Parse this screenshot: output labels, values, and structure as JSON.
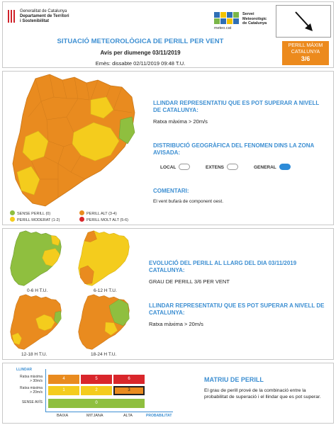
{
  "header": {
    "gen_line1": "Generalitat de Catalunya",
    "gen_line2": "Departament de Territori",
    "gen_line3": "i Sostenibilitat",
    "smc_url": "meteo.cat",
    "smc_line1": "Servei",
    "smc_line2": "Meteorològic",
    "smc_line3": "de Catalunya",
    "title": "SITUACIÓ METEOROLÒGICA DE PERILL PER VENT",
    "subtitle": "Avís per diumenge 03/11/2019",
    "issued": "Emès: dissabte 02/11/2019 09:48 T.U.",
    "badge_line1": "PERILL MÀXIM",
    "badge_line2": "CATALUNYA",
    "badge_level": "3/6",
    "wind_arrow_icon": "wind-direction-arrow-icon"
  },
  "section_main": {
    "threshold_title": "LLINDAR REPRESENTATIU QUE ES POT SUPERAR A NIVELL DE CATALUNYA:",
    "threshold_value": "Ratxa màxima > 20m/s",
    "distribution_title": "DISTRIBUCIÓ GEOGRÀFICA DEL FENOMEN DINS LA ZONA AVISADA:",
    "dist_local": "LOCAL",
    "dist_extens": "EXTENS",
    "dist_general": "GENERAL",
    "dist_selected": "GENERAL",
    "comments_title": "COMENTARI:",
    "comments_text": "El vent bufarà de component oest.",
    "legend": {
      "none": "SENSE PERILL (0)",
      "moderate": "PERILL MODERAT (1-2)",
      "high": "PERILL ALT (3-4)",
      "very_high": "PERILL MOLT ALT (5-6)"
    },
    "colors": {
      "none": "#8fbf3f",
      "moderate": "#f4cc1d",
      "high": "#e98b1f",
      "very_high": "#d9262b",
      "accent": "#3d8fd2"
    }
  },
  "section_evolution": {
    "maps": [
      {
        "label": "0-6 H T.U."
      },
      {
        "label": "6-12 H T.U."
      },
      {
        "label": "12-18 H T.U."
      },
      {
        "label": "18-24 H T.U."
      }
    ],
    "evolution_title": "EVOLUCIÓ DEL PERILL AL LLARG DEL DIA 03/11/2019 CATALUNYA:",
    "evolution_value": "GRAU DE PERILL 3/6 PER VENT",
    "threshold_title": "LLINDAR REPRESENTATIU QUE ES POT SUPERAR A NIVELL DE CATALUNYA:",
    "threshold_value": "Ratxa màxima > 20m/s"
  },
  "section_matrix": {
    "y_axis_title": "LLINDAR",
    "row_top_label_1": "Ratxa màxima",
    "row_top_label_2": "> 30m/s",
    "row_mid_label_1": "Ratxa màxima",
    "row_mid_label_2": "> 20m/s",
    "row_bottom_label": "SENSE AVÍS",
    "col_low": "BAIXA",
    "col_mid": "MITJANA",
    "col_high": "ALTA",
    "x_axis_title": "PROBABILITAT",
    "cells_top": [
      "4",
      "5",
      "6"
    ],
    "cells_mid": [
      "1",
      "2",
      "3"
    ],
    "cell_bottom": "0",
    "selected_level": "3",
    "title": "MATRIU DE PERILL",
    "description": "El grau de perill prové de la combinació entre la probabilitat de superació i el llindar que es pot superar."
  }
}
